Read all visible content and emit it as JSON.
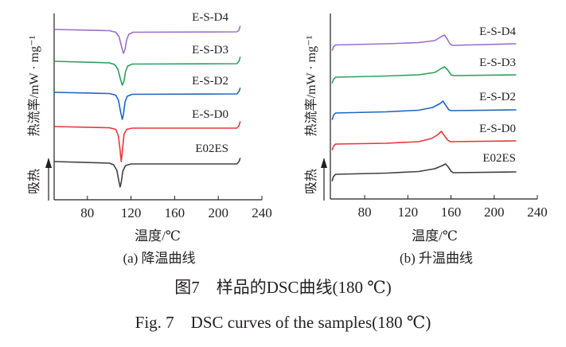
{
  "colors": {
    "E-S-D4": "#9b6fc6",
    "E-S-D3": "#2aa060",
    "E-S-D2": "#1f64c0",
    "E-S-D0": "#e8363a",
    "E02ES": "#404040",
    "axis": "#231f20"
  },
  "figure": {
    "caption_cn": "图7　样品的DSC曲线(180 ℃)",
    "caption_en": "Fig. 7　DSC curves of the samples(180 ℃)"
  },
  "chart_data": [
    {
      "type": "line",
      "subtitle": "(a) 降温曲线",
      "xlabel": "温度/℃",
      "ylabel": "热流率/mW · mg⁻¹",
      "y_direction_label": "吸热",
      "xticks": [
        80,
        120,
        160,
        200,
        240
      ],
      "xlim": [
        49.5,
        240
      ],
      "ylim": [
        0,
        23.4
      ],
      "grid": false,
      "series": [
        {
          "name": "E-S-D4",
          "points": [
            [
              50,
              21.4
            ],
            [
              100,
              21.25
            ],
            [
              106,
              21.05
            ],
            [
              109,
              20.5
            ],
            [
              111,
              19.4
            ],
            [
              113,
              18.4
            ],
            [
              114.5,
              18.9
            ],
            [
              116,
              20.1
            ],
            [
              118,
              20.8
            ],
            [
              122,
              21.05
            ],
            [
              217,
              21.1
            ],
            [
              219,
              21.3
            ],
            [
              220,
              21.8
            ]
          ]
        },
        {
          "name": "E-S-D3",
          "points": [
            [
              50,
              17.4
            ],
            [
              100,
              17.2
            ],
            [
              105,
              17.0
            ],
            [
              108,
              16.4
            ],
            [
              110,
              15.3
            ],
            [
              112,
              14.4
            ],
            [
              113.5,
              14.9
            ],
            [
              115,
              16.1
            ],
            [
              117,
              16.8
            ],
            [
              121,
              17.05
            ],
            [
              217,
              17.1
            ],
            [
              219,
              17.4
            ],
            [
              220,
              17.9
            ]
          ]
        },
        {
          "name": "E-S-D2",
          "points": [
            [
              50,
              13.5
            ],
            [
              100,
              13.35
            ],
            [
              106,
              13.15
            ],
            [
              108.5,
              12.5
            ],
            [
              110.5,
              11.0
            ],
            [
              112,
              10.1
            ],
            [
              113,
              10.7
            ],
            [
              114.5,
              12.3
            ],
            [
              116.5,
              13.0
            ],
            [
              121,
              13.25
            ],
            [
              217,
              13.3
            ],
            [
              219,
              13.6
            ],
            [
              220,
              14.0
            ]
          ]
        },
        {
          "name": "E-S-D0",
          "points": [
            [
              50,
              9.2
            ],
            [
              100,
              9.05
            ],
            [
              106,
              8.85
            ],
            [
              108.5,
              8.0
            ],
            [
              110,
              6.2
            ],
            [
              111,
              4.8
            ],
            [
              112,
              6.0
            ],
            [
              113.5,
              8.2
            ],
            [
              116,
              8.85
            ],
            [
              121,
              9.0
            ],
            [
              217,
              9.0
            ],
            [
              219,
              9.3
            ],
            [
              220,
              9.8
            ]
          ]
        },
        {
          "name": "E02ES",
          "points": [
            [
              50,
              4.8
            ],
            [
              100,
              4.6
            ],
            [
              104,
              4.4
            ],
            [
              107,
              3.7
            ],
            [
              108.8,
              2.4
            ],
            [
              110,
              1.6
            ],
            [
              111,
              2.2
            ],
            [
              112.5,
              3.6
            ],
            [
              115,
              4.3
            ],
            [
              120,
              4.5
            ],
            [
              217,
              4.5
            ],
            [
              219,
              4.8
            ],
            [
              220,
              5.2
            ]
          ]
        }
      ]
    },
    {
      "type": "line",
      "subtitle": "(b) 升温曲线",
      "xlabel": "温度/℃",
      "ylabel": "热流率/mW · mg⁻¹",
      "y_direction_label": "吸热",
      "xticks": [
        80,
        120,
        160,
        200,
        240
      ],
      "xlim": [
        48.2,
        240
      ],
      "ylim": [
        0,
        23.3
      ],
      "grid": false,
      "series": [
        {
          "name": "E-S-D4",
          "points": [
            [
              50,
              18.7
            ],
            [
              51,
              19.1
            ],
            [
              53,
              19.35
            ],
            [
              100,
              19.5
            ],
            [
              130,
              19.65
            ],
            [
              145,
              19.9
            ],
            [
              151,
              20.4
            ],
            [
              154,
              20.6
            ],
            [
              156,
              20.2
            ],
            [
              159,
              19.5
            ],
            [
              161,
              19.3
            ],
            [
              220,
              19.5
            ]
          ]
        },
        {
          "name": "E-S-D3",
          "points": [
            [
              50,
              14.6
            ],
            [
              51,
              15.0
            ],
            [
              53,
              15.3
            ],
            [
              100,
              15.45
            ],
            [
              130,
              15.6
            ],
            [
              145,
              15.9
            ],
            [
              151,
              16.4
            ],
            [
              154,
              16.6
            ],
            [
              157,
              16.2
            ],
            [
              160,
              15.6
            ],
            [
              162,
              15.5
            ],
            [
              220,
              15.6
            ]
          ]
        },
        {
          "name": "E-S-D2",
          "points": [
            [
              50,
              10.0
            ],
            [
              51,
              10.5
            ],
            [
              53,
              10.8
            ],
            [
              100,
              10.95
            ],
            [
              130,
              11.15
            ],
            [
              143,
              11.5
            ],
            [
              150,
              12.0
            ],
            [
              152.5,
              12.3
            ],
            [
              155,
              11.8
            ],
            [
              158,
              11.2
            ],
            [
              160,
              11.1
            ],
            [
              220,
              11.2
            ]
          ]
        },
        {
          "name": "E-S-D0",
          "points": [
            [
              50,
              6.2
            ],
            [
              51,
              6.6
            ],
            [
              53,
              6.9
            ],
            [
              100,
              7.0
            ],
            [
              130,
              7.2
            ],
            [
              142,
              7.6
            ],
            [
              148,
              8.1
            ],
            [
              151,
              8.5
            ],
            [
              153,
              8.1
            ],
            [
              157,
              7.4
            ],
            [
              159,
              7.2
            ],
            [
              220,
              7.3
            ]
          ]
        },
        {
          "name": "E02ES",
          "points": [
            [
              50,
              2.3
            ],
            [
              51,
              2.8
            ],
            [
              53,
              3.1
            ],
            [
              100,
              3.25
            ],
            [
              130,
              3.45
            ],
            [
              145,
              3.8
            ],
            [
              152,
              4.2
            ],
            [
              155,
              4.4
            ],
            [
              157,
              4.1
            ],
            [
              160,
              3.5
            ],
            [
              162,
              3.3
            ],
            [
              220,
              3.4
            ]
          ]
        }
      ]
    }
  ]
}
